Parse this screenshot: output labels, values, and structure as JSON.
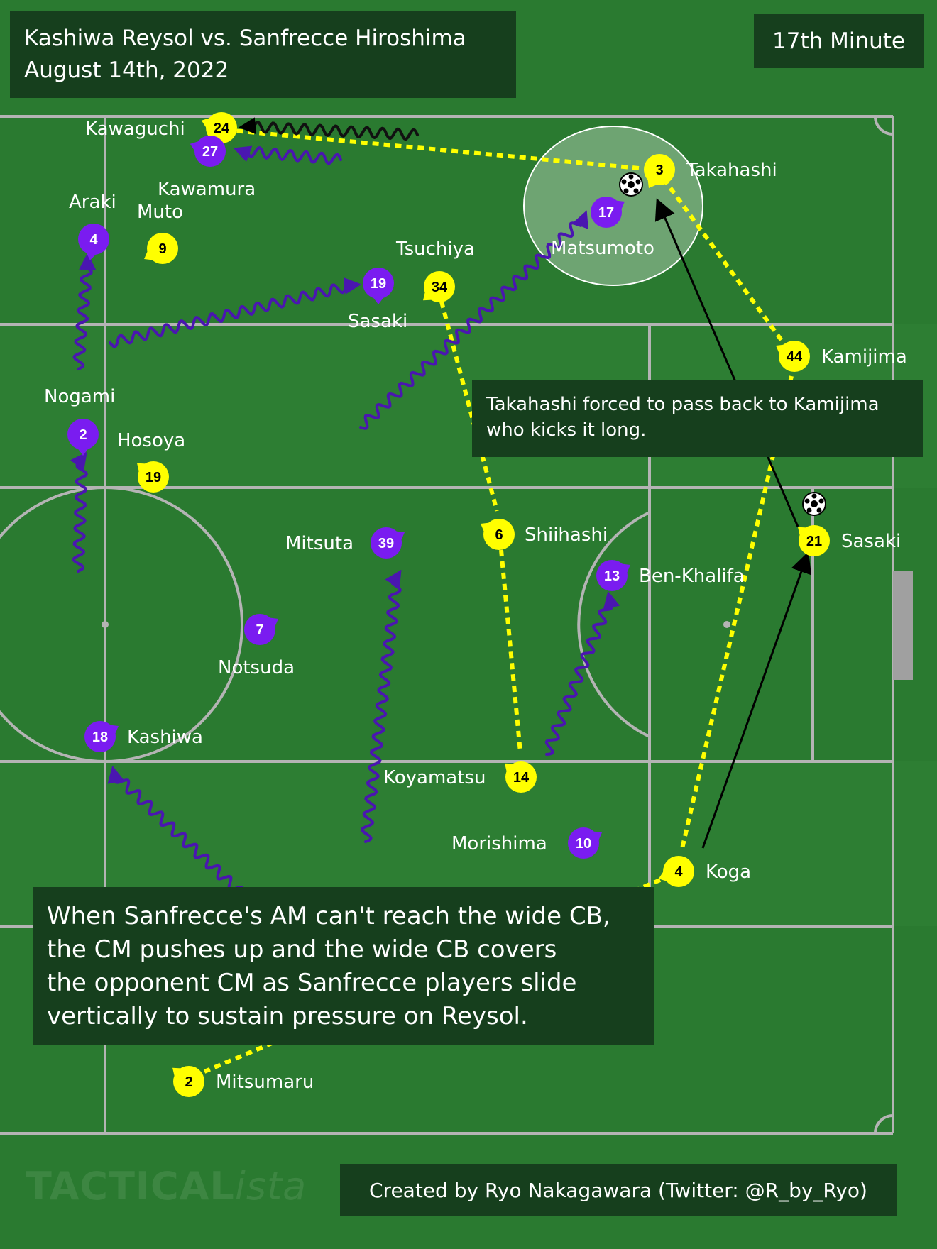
{
  "header": {
    "match": "Kashiwa Reysol vs. Sanfrecce Hiroshima",
    "date": "August 14th, 2022",
    "minute": "17th Minute"
  },
  "note": "Takahashi forced to pass back to Kamijima who kicks it long.",
  "caption": {
    "lines": [
      "When Sanfrecce's AM can't reach the wide CB,",
      "the CM pushes up and the wide CB covers",
      "the opponent CM as Sanfrecce players slide",
      "vertically to sustain pressure on Reysol."
    ]
  },
  "credit": "Created by Ryo Nakagawara (Twitter: @R_by_Ryo)",
  "watermark": {
    "main": "TACTICAL",
    "suffix": "ista"
  },
  "colors": {
    "pitch": "#2a7a30",
    "lines": "#b4b4b4",
    "reysol": "#ffff00",
    "sanfrecce": "#7a1cf0",
    "box": "#163f1d",
    "run": "#4a16b0"
  },
  "players": {
    "reysol": [
      {
        "num": "24",
        "name": "Kawaguchi"
      },
      {
        "num": "3",
        "name": "Takahashi"
      },
      {
        "num": "9",
        "name": "Muto"
      },
      {
        "num": "34",
        "name": "Tsuchiya"
      },
      {
        "num": "44",
        "name": "Kamijima"
      },
      {
        "num": "19",
        "name": "Hosoya"
      },
      {
        "num": "6",
        "name": "Shiihashi"
      },
      {
        "num": "21",
        "name": "Sasaki"
      },
      {
        "num": "14",
        "name": "Koyamatsu"
      },
      {
        "num": "4",
        "name": "Koga"
      },
      {
        "num": "2",
        "name": "Mitsumaru"
      }
    ],
    "sanfrecce": [
      {
        "num": "27",
        "name": "Kawamura"
      },
      {
        "num": "4",
        "name": "Araki"
      },
      {
        "num": "17",
        "name": "Matsumoto"
      },
      {
        "num": "19",
        "name": "Sasaki"
      },
      {
        "num": "2",
        "name": "Nogami"
      },
      {
        "num": "39",
        "name": "Mitsuta"
      },
      {
        "num": "13",
        "name": "Ben-Khalifa"
      },
      {
        "num": "7",
        "name": "Notsuda"
      },
      {
        "num": "18",
        "name": "Kashiwa"
      },
      {
        "num": "10",
        "name": "Morishima"
      }
    ]
  }
}
